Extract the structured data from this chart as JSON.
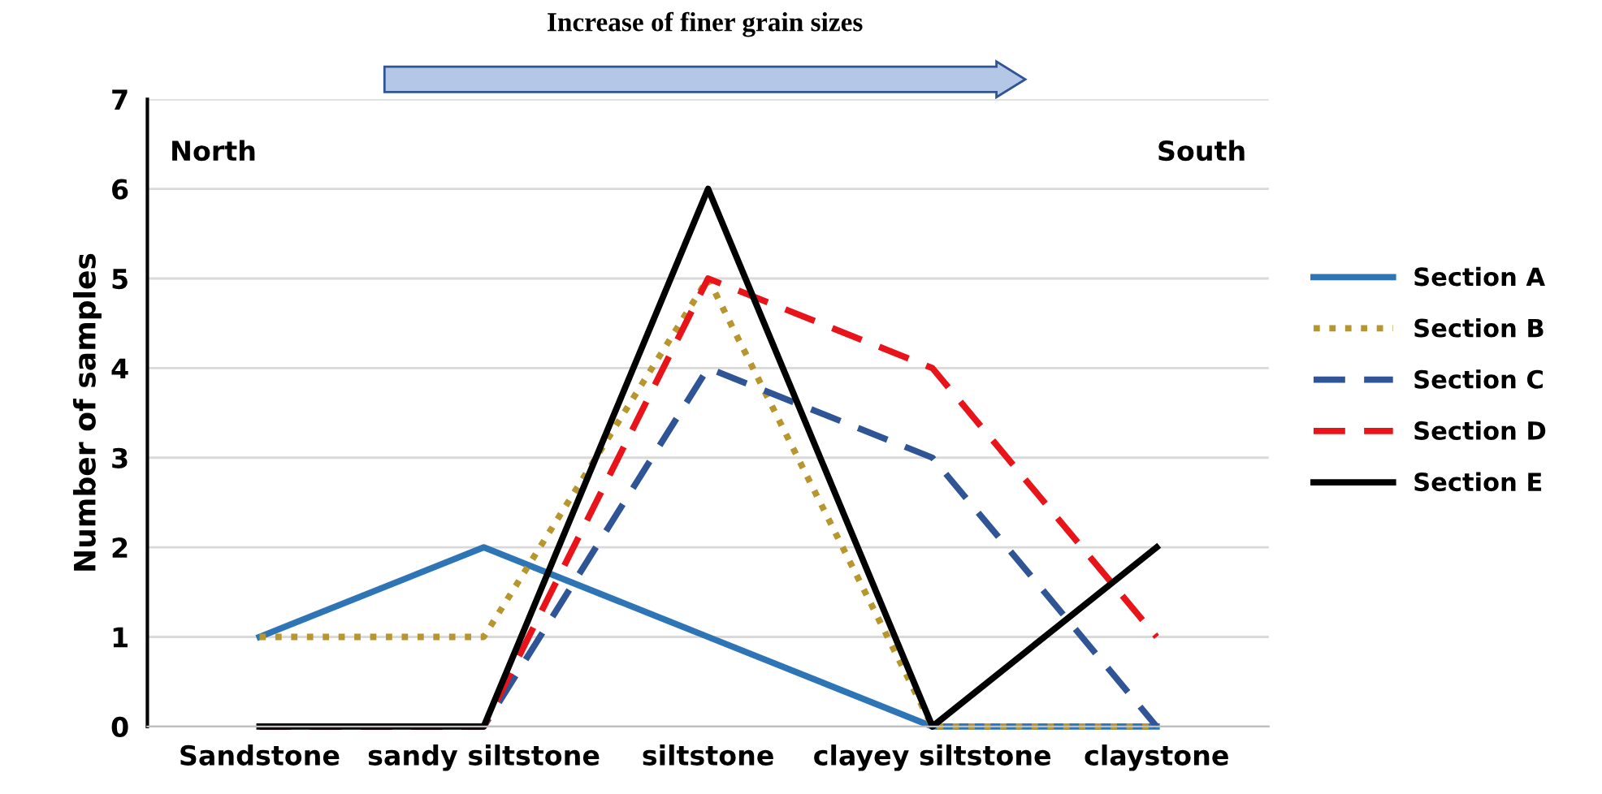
{
  "chart_data": {
    "type": "line",
    "title": "Increase of finer grain sizes",
    "ylabel": "Number of samples",
    "categories": [
      "Sandstone",
      "sandy siltstone",
      "siltstone",
      "clayey siltstone",
      "claystone"
    ],
    "series": [
      {
        "name": "Section A",
        "color": "#2e75b6",
        "values": [
          1,
          2,
          1,
          0,
          0
        ],
        "line_style": "solid"
      },
      {
        "name": "Section B",
        "color": "#b8962e",
        "values": [
          1,
          1,
          5,
          0,
          0
        ],
        "line_style": "dotted"
      },
      {
        "name": "Section C",
        "color": "#2f5597",
        "values": [
          0,
          0,
          4,
          3,
          0
        ],
        "line_style": "dashed"
      },
      {
        "name": "Section D",
        "color": "#e8141a",
        "values": [
          0,
          0,
          5,
          4,
          1
        ],
        "line_style": "dashed"
      },
      {
        "name": "Section E",
        "color": "#000000",
        "values": [
          0,
          0,
          6,
          0,
          2
        ],
        "line_style": "solid"
      }
    ],
    "annotations": [
      "North",
      "South"
    ],
    "ylim": [
      0,
      7
    ],
    "yticks": [
      0,
      1,
      2,
      3,
      4,
      5,
      6,
      7
    ],
    "grid": "y",
    "legend": "right",
    "marker": "none"
  }
}
